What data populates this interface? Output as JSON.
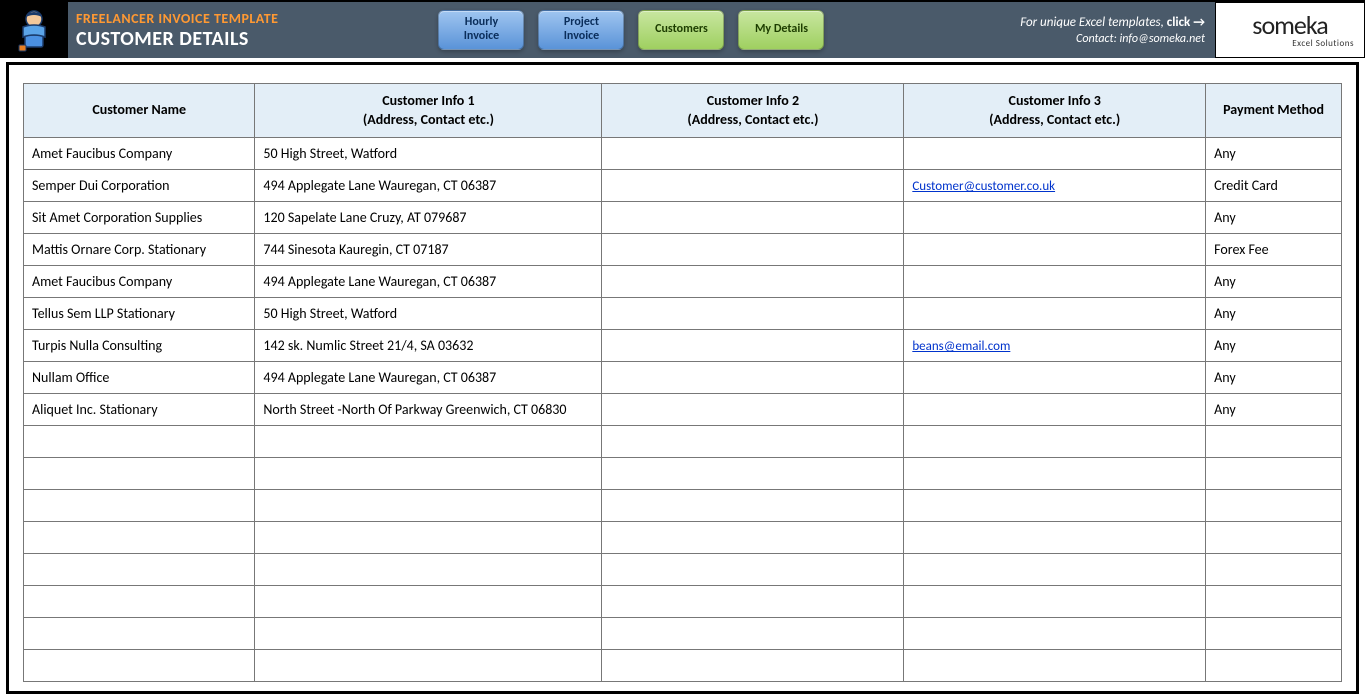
{
  "header": {
    "title": "FREELANCER INVOICE TEMPLATE",
    "subtitle": "CUSTOMER DETAILS",
    "nav": [
      {
        "label_l1": "Hourly",
        "label_l2": "Invoice",
        "style": "blue"
      },
      {
        "label_l1": "Project",
        "label_l2": "Invoice",
        "style": "blue"
      },
      {
        "label_l1": "Customers",
        "label_l2": "",
        "style": "green"
      },
      {
        "label_l1": "My Details",
        "label_l2": "",
        "style": "green"
      }
    ],
    "promo_prefix": "For unique Excel templates, ",
    "promo_bold": "click →",
    "contact": "Contact: info@someka.net",
    "logo_main": "someka",
    "logo_sub": "Excel Solutions"
  },
  "table": {
    "columns": [
      {
        "h1": "Customer Name",
        "h2": ""
      },
      {
        "h1": "Customer Info 1",
        "h2": "(Address, Contact etc.)"
      },
      {
        "h1": "Customer Info 2",
        "h2": "(Address, Contact etc.)"
      },
      {
        "h1": "Customer Info 3",
        "h2": "(Address, Contact etc.)"
      },
      {
        "h1": "Payment Method",
        "h2": ""
      }
    ],
    "rows": [
      {
        "name": "Amet Faucibus Company",
        "info1": "50 High Street, Watford",
        "info2": "",
        "info3": "",
        "info3_link": false,
        "pay": "Any"
      },
      {
        "name": "Semper Dui Corporation",
        "info1": "494 Applegate Lane Wauregan, CT 06387",
        "info2": "",
        "info3": "Customer@customer.co.uk",
        "info3_link": true,
        "pay": "Credit Card"
      },
      {
        "name": "Sit Amet Corporation Supplies",
        "info1": "120 Sapelate Lane Cruzy, AT 079687",
        "info2": "",
        "info3": "",
        "info3_link": false,
        "pay": "Any"
      },
      {
        "name": "Mattis Ornare Corp. Stationary",
        "info1": "744 Sinesota Kauregin, CT 07187",
        "info2": "",
        "info3": "",
        "info3_link": false,
        "pay": "Forex Fee"
      },
      {
        "name": "Amet Faucibus Company",
        "info1": "494 Applegate Lane Wauregan, CT 06387",
        "info2": "",
        "info3": "",
        "info3_link": false,
        "pay": "Any"
      },
      {
        "name": "Tellus Sem LLP Stationary",
        "info1": "50 High Street, Watford",
        "info2": "",
        "info3": "",
        "info3_link": false,
        "pay": "Any"
      },
      {
        "name": "Turpis Nulla Consulting",
        "info1": "142 sk. Numlic Street 21/4, SA 03632",
        "info2": "",
        "info3": "beans@email.com",
        "info3_link": true,
        "pay": "Any"
      },
      {
        "name": "Nullam Office",
        "info1": "494 Applegate Lane Wauregan, CT 06387",
        "info2": "",
        "info3": "",
        "info3_link": false,
        "pay": "Any"
      },
      {
        "name": "Aliquet Inc. Stationary",
        "info1": "North Street -North Of Parkway Greenwich, CT 06830",
        "info2": "",
        "info3": "",
        "info3_link": false,
        "pay": "Any"
      }
    ],
    "empty_rows": 8
  },
  "colors": {
    "header_bg": "#4a5a6a",
    "title_accent": "#ff9933",
    "th_bg": "#e3eef7",
    "link": "#0033cc"
  }
}
